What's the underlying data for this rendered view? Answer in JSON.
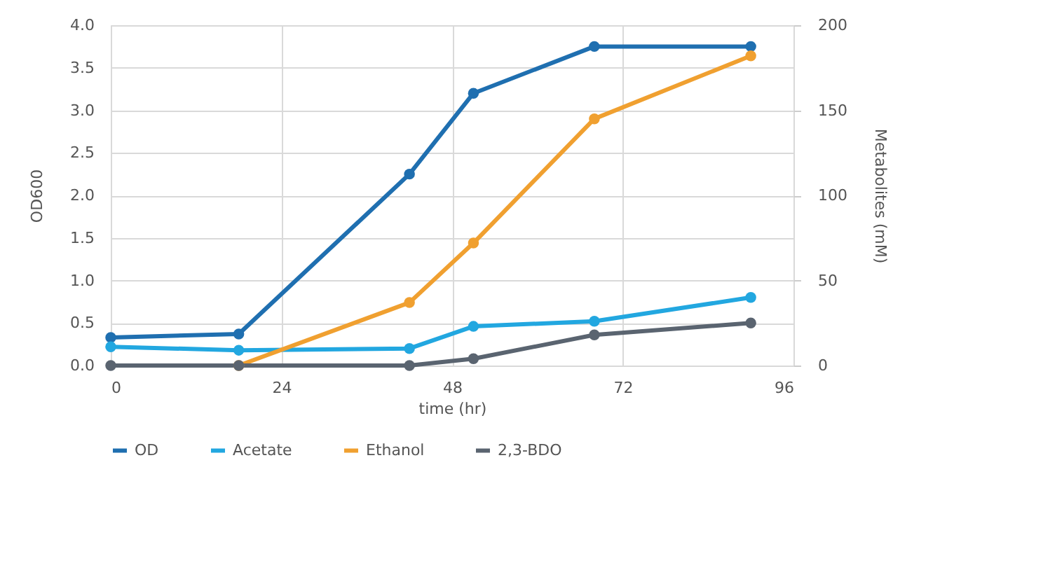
{
  "chart_data": {
    "type": "line",
    "xlabel": "time (hr)",
    "ylabel": "OD600",
    "y2label": "Metabolites (mM)",
    "x": [
      0,
      18,
      42,
      51,
      68,
      90
    ],
    "series": [
      {
        "name": "OD",
        "color": "#1f6fb0",
        "values": [
          0.33,
          0.37,
          2.25,
          3.2,
          3.75,
          3.75
        ]
      },
      {
        "name": "Acetate",
        "color": "#22a7e0",
        "axis": "y2",
        "values": [
          11,
          9,
          10,
          23,
          26,
          40
        ]
      },
      {
        "name": "Ethanol",
        "color": "#f0a030",
        "axis": "y2",
        "values": [
          null,
          0,
          37,
          72,
          145,
          182
        ]
      },
      {
        "name": "2,3-BDO",
        "color": "#5a6470",
        "axis": "y2",
        "values": [
          0,
          0,
          0,
          4,
          18,
          25
        ]
      }
    ],
    "xlim": [
      0,
      96
    ],
    "xticks": [
      0,
      24,
      48,
      72,
      96
    ],
    "ylim": [
      0,
      4
    ],
    "yticks": [
      {
        "value": 0,
        "label": "0.0"
      },
      0.5,
      {
        "value": 1,
        "label": "1.0"
      },
      1.5,
      {
        "value": 2,
        "label": "2.0"
      },
      2.5,
      {
        "value": 3,
        "label": "3.0"
      },
      3.5,
      {
        "value": 4,
        "label": "4.0"
      }
    ],
    "y2lim": [
      0,
      200
    ],
    "y2ticks": [
      0,
      50,
      100,
      150,
      200
    ],
    "grid": true,
    "legend": "bottom",
    "marker": "circle",
    "line_style": "solid"
  }
}
